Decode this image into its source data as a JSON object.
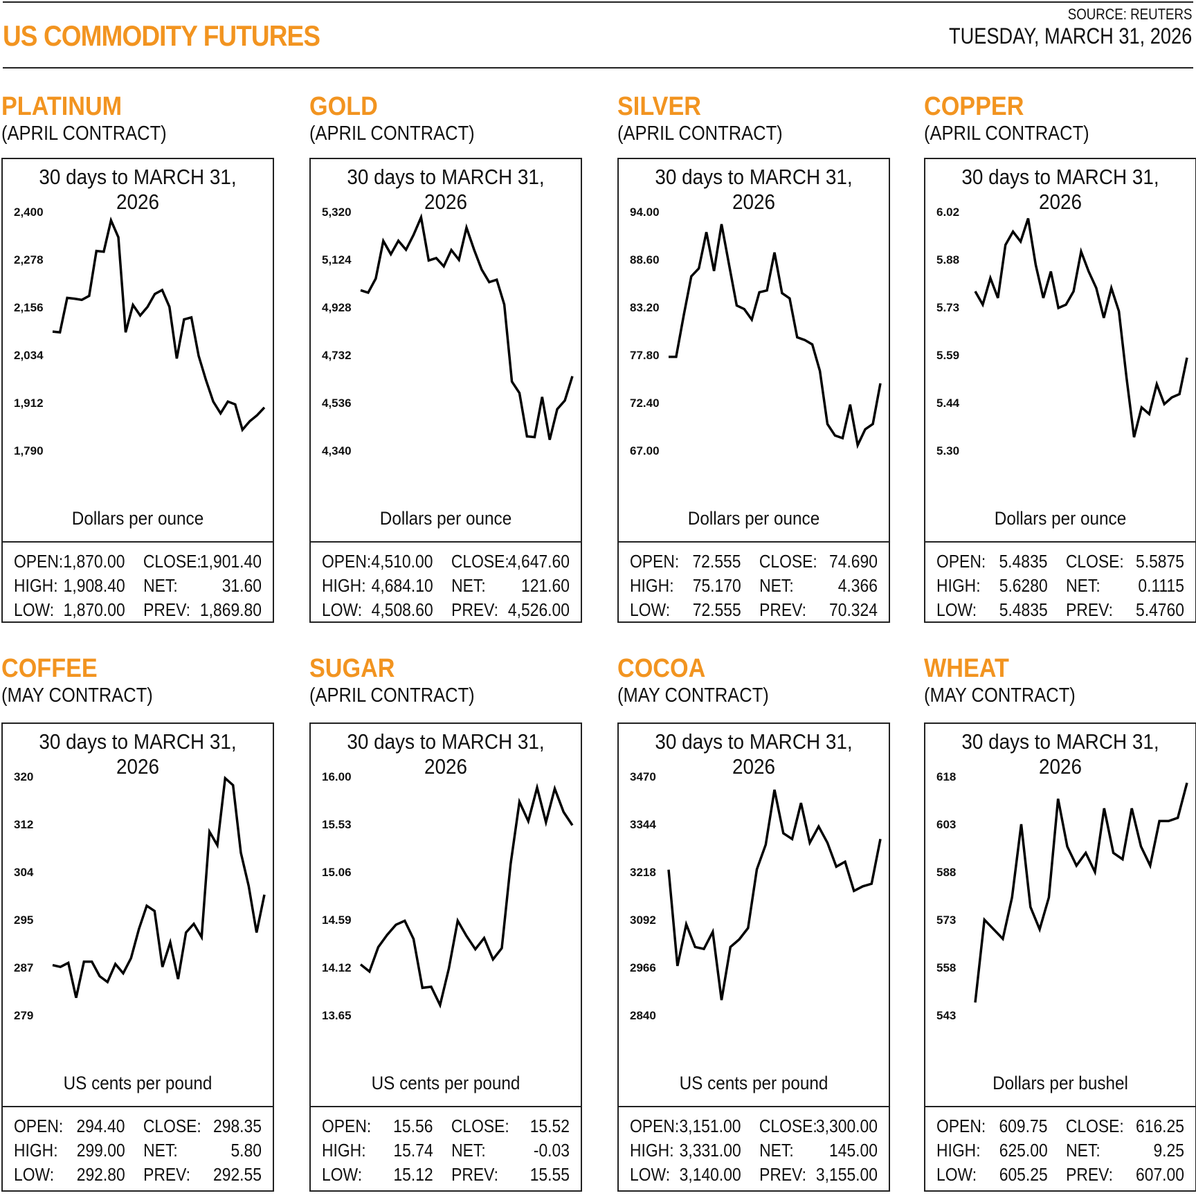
{
  "header": {
    "title": "US COMMODITY FUTURES",
    "source": "SOURCE: REUTERS",
    "date": "TUESDAY, MARCH 31, 2026",
    "accent_color": "#f29420"
  },
  "chart_data": [
    {
      "type": "line",
      "name": "PLATINUM",
      "contract": "(APRIL CONTRACT)",
      "title": "30 days to MARCH 31, 2026",
      "ylabel": "Dollars per ounce",
      "yticks": [
        "2,400",
        "2,278",
        "2,156",
        "2,034",
        "1,912",
        "1,790"
      ],
      "ylim": [
        1790,
        2400
      ],
      "values": [
        2094,
        2092,
        2180,
        2178,
        2175,
        2185,
        2300,
        2298,
        2378,
        2335,
        2092,
        2162,
        2135,
        2157,
        2190,
        2200,
        2157,
        2025,
        2125,
        2130,
        2032,
        1970,
        1915,
        1885,
        1915,
        1908,
        1843,
        1865,
        1880,
        1900
      ],
      "stats": {
        "open": "1,870.00",
        "high": "1,908.40",
        "low": "1,870.00",
        "close": "1,901.40",
        "net": "31.60",
        "prev": "1,869.80"
      }
    },
    {
      "type": "line",
      "name": "GOLD",
      "contract": "(APRIL CONTRACT)",
      "title": "30 days to MARCH 31, 2026",
      "ylabel": "Dollars per ounce",
      "yticks": [
        "5,320",
        "5,124",
        "4,928",
        "4,732",
        "4,536",
        "4,340"
      ],
      "ylim": [
        4340,
        5320
      ],
      "values": [
        4998,
        4988,
        5046,
        5200,
        5146,
        5201,
        5164,
        5225,
        5297,
        5120,
        5130,
        5096,
        5163,
        5123,
        5255,
        5165,
        5083,
        5031,
        5041,
        4939,
        4623,
        4576,
        4398,
        4395,
        4560,
        4384,
        4510,
        4545,
        4645
      ],
      "stats": {
        "open": "4,510.00",
        "high": "4,684.10",
        "low": "4,508.60",
        "close": "4,647.60",
        "net": "121.60",
        "prev": "4,526.00"
      }
    },
    {
      "type": "line",
      "name": "SILVER",
      "contract": "(APRIL CONTRACT)",
      "title": "30 days to MARCH 31, 2026",
      "ylabel": "Dollars per ounce",
      "yticks": [
        "94.00",
        "88.60",
        "83.20",
        "77.80",
        "72.40",
        "67.00"
      ],
      "ylim": [
        67,
        94
      ],
      "values": [
        77.6,
        77.6,
        82.3,
        86.7,
        87.6,
        91.7,
        87.3,
        92.6,
        88.0,
        83.4,
        83.0,
        81.8,
        84.9,
        85.1,
        89.4,
        84.8,
        84.2,
        79.8,
        79.5,
        79.0,
        76.0,
        70.0,
        68.7,
        68.4,
        72.2,
        67.6,
        69.4,
        70.0,
        74.6
      ],
      "stats": {
        "open": "72.555",
        "high": "75.170",
        "low": "72.555",
        "close": "74.690",
        "net": "4.366",
        "prev": "70.324"
      }
    },
    {
      "type": "line",
      "name": "COPPER",
      "contract": "(APRIL CONTRACT)",
      "title": "30 days to MARCH 31, 2026",
      "ylabel": "Dollars per ounce",
      "yticks": [
        "6.02",
        "5.88",
        "5.73",
        "5.59",
        "5.44",
        "5.30"
      ],
      "ylim": [
        5.3,
        6.02
      ],
      "values": [
        5.78,
        5.74,
        5.82,
        5.76,
        5.92,
        5.96,
        5.93,
        6.0,
        5.86,
        5.76,
        5.84,
        5.73,
        5.74,
        5.78,
        5.9,
        5.84,
        5.79,
        5.7,
        5.79,
        5.72,
        5.52,
        5.34,
        5.43,
        5.41,
        5.5,
        5.44,
        5.46,
        5.47,
        5.58
      ],
      "stats": {
        "open": "5.4835",
        "high": "5.6280",
        "low": "5.4835",
        "close": "5.5875",
        "net": "0.1115",
        "prev": "5.4760"
      }
    },
    {
      "type": "line",
      "name": "COFFEE",
      "contract": "(MAY CONTRACT)",
      "title": "30 days to MARCH 31, 2026",
      "ylabel": "US cents per pound",
      "yticks": [
        "320",
        "312",
        "304",
        "295",
        "287",
        "279"
      ],
      "ylim": [
        279,
        320
      ],
      "values": [
        287.6,
        287.3,
        288,
        282,
        288.2,
        288.2,
        285.7,
        284.7,
        287.8,
        286.2,
        288.8,
        293.8,
        297.8,
        296.9,
        287.3,
        291.5,
        285.2,
        293.2,
        294.7,
        292.4,
        310.5,
        308.2,
        319.7,
        318.5,
        306.9,
        301.2,
        293.2,
        299.7
      ],
      "stats": {
        "open": "294.40",
        "high": "299.00",
        "low": "292.80",
        "close": "298.35",
        "net": "5.80",
        "prev": "292.55"
      }
    },
    {
      "type": "line",
      "name": "SUGAR",
      "contract": "(APRIL CONTRACT)",
      "title": "30 days to MARCH 31, 2026",
      "ylabel": "US cents per pound",
      "yticks": [
        "16.00",
        "15.53",
        "15.06",
        "14.59",
        "14.12",
        "13.65"
      ],
      "ylim": [
        13.65,
        16.0
      ],
      "values": [
        14.15,
        14.08,
        14.32,
        14.44,
        14.54,
        14.58,
        14.4,
        13.92,
        13.93,
        13.75,
        14.11,
        14.58,
        14.43,
        14.3,
        14.41,
        14.2,
        14.31,
        15.14,
        15.75,
        15.56,
        15.89,
        15.55,
        15.88,
        15.65,
        15.52
      ],
      "stats": {
        "open": "15.56",
        "high": "15.74",
        "low": "15.12",
        "close": "15.52",
        "net": "-0.03",
        "prev": "15.55"
      }
    },
    {
      "type": "line",
      "name": "COCOA",
      "contract": "(MAY CONTRACT)",
      "title": "30 days to MARCH 31, 2026",
      "ylabel": "US cents per pound",
      "yticks": [
        "3470",
        "3344",
        "3218",
        "3092",
        "2966",
        "2840"
      ],
      "ylim": [
        2840,
        3470
      ],
      "values": [
        3224,
        2970,
        3080,
        3020,
        3015,
        3060,
        2880,
        3020,
        3040,
        3070,
        3225,
        3290,
        3435,
        3320,
        3305,
        3400,
        3295,
        3338,
        3295,
        3232,
        3245,
        3168,
        3180,
        3187,
        3305
      ],
      "stats": {
        "open": "3,151.00",
        "high": "3,331.00",
        "low": "3,140.00",
        "close": "3,300.00",
        "net": "145.00",
        "prev": "3,155.00"
      }
    },
    {
      "type": "line",
      "name": "WHEAT",
      "contract": "(MAY CONTRACT)",
      "title": "30 days to MARCH 31, 2026",
      "ylabel": "Dollars per bushel",
      "yticks": [
        "618",
        "603",
        "588",
        "573",
        "558",
        "543"
      ],
      "ylim": [
        543,
        618
      ],
      "values": [
        547,
        573,
        570,
        567,
        580,
        603,
        577,
        570,
        580,
        611,
        596,
        590,
        594,
        588,
        608,
        594,
        592,
        608,
        596,
        590,
        604,
        604,
        605,
        616
      ],
      "stats": {
        "open": "609.75",
        "high": "625.00",
        "low": "605.25",
        "close": "616.25",
        "net": "9.25",
        "prev": "607.00"
      }
    }
  ],
  "labels": {
    "open": "OPEN:",
    "high": "HIGH:",
    "low": "LOW:",
    "close": "CLOSE:",
    "net": "NET:",
    "prev": "PREV:"
  }
}
